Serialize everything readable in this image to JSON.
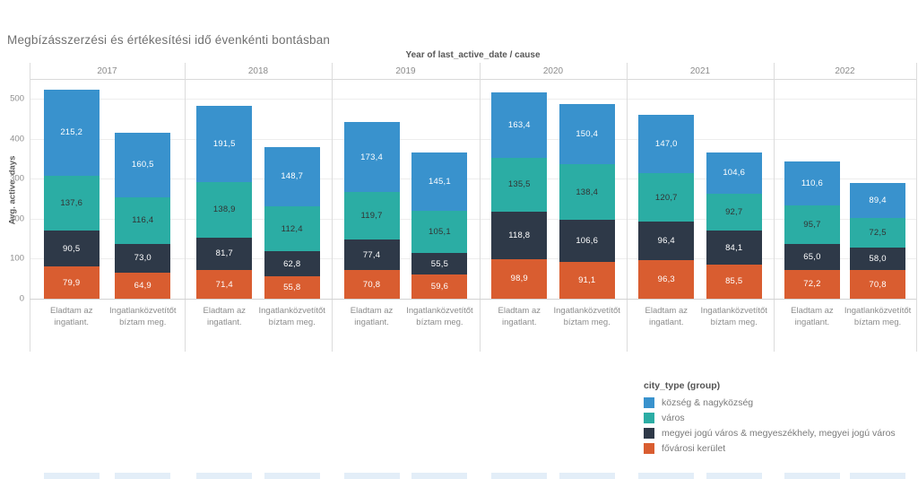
{
  "title": "Megbízásszerzési és értékesítési idő évenkénti bontásban",
  "panel_header": "Year of last_active_date / cause",
  "y_axis": {
    "title": "Avg. active_days",
    "ticks": [
      0,
      100,
      200,
      300,
      400,
      500
    ],
    "max": 550
  },
  "category_labels_lines": [
    [
      "Eladtam az",
      "ingatlant."
    ],
    [
      "Ingatlanközvetítőt",
      "bíztam meg."
    ]
  ],
  "legend": {
    "title": "city_type (group)",
    "items": [
      {
        "label": "község & nagyközség",
        "color": "#3992cd"
      },
      {
        "label": "város",
        "color": "#2bada4"
      },
      {
        "label": "megyei jogú város & megyeszékhely, megyei jogú város",
        "color": "#2e3948"
      },
      {
        "label": "fővárosi kerület",
        "color": "#d95d30"
      }
    ]
  },
  "chart_data": {
    "type": "bar",
    "stacked": true,
    "title": "Megbízásszerzési és értékesítési idő évenkénti bontásban",
    "xlabel": "Year of last_active_date / cause",
    "ylabel": "Avg. active_days",
    "ylim": [
      0,
      550
    ],
    "grid": true,
    "legend_position": "bottom-right",
    "value_label_decimal_separator": ",",
    "x_groups": [
      "2017",
      "2018",
      "2019",
      "2020",
      "2021",
      "2022"
    ],
    "bar_categories": [
      "Eladtam az ingatlant.",
      "Ingatlanközvetítőt bíztam meg."
    ],
    "series": [
      {
        "name": "község & nagyközség",
        "color": "#3992cd",
        "label_text_color": "#ffffff",
        "values": [
          [
            215.2,
            160.5
          ],
          [
            191.5,
            148.7
          ],
          [
            173.4,
            145.1
          ],
          [
            163.4,
            150.4
          ],
          [
            147.0,
            104.6
          ],
          [
            110.6,
            89.4
          ]
        ]
      },
      {
        "name": "város",
        "color": "#2bada4",
        "label_text_color": "#333333",
        "values": [
          [
            137.6,
            116.4
          ],
          [
            138.9,
            112.4
          ],
          [
            119.7,
            105.1
          ],
          [
            135.5,
            138.4
          ],
          [
            120.7,
            92.7
          ],
          [
            95.7,
            72.5
          ]
        ]
      },
      {
        "name": "megyei jogú város & megyeszékhely, megyei jogú város",
        "color": "#2e3948",
        "label_text_color": "#ffffff",
        "values": [
          [
            90.5,
            73.0
          ],
          [
            81.7,
            62.8
          ],
          [
            77.4,
            55.5
          ],
          [
            118.8,
            106.6
          ],
          [
            96.4,
            84.1
          ],
          [
            65.0,
            58.0
          ]
        ]
      },
      {
        "name": "fővárosi kerület",
        "color": "#d95d30",
        "label_text_color": "#ffffff",
        "values": [
          [
            79.9,
            64.9
          ],
          [
            71.4,
            55.8
          ],
          [
            70.8,
            59.6
          ],
          [
            98.9,
            91.1
          ],
          [
            96.3,
            85.5
          ],
          [
            72.2,
            70.8
          ]
        ]
      }
    ]
  }
}
